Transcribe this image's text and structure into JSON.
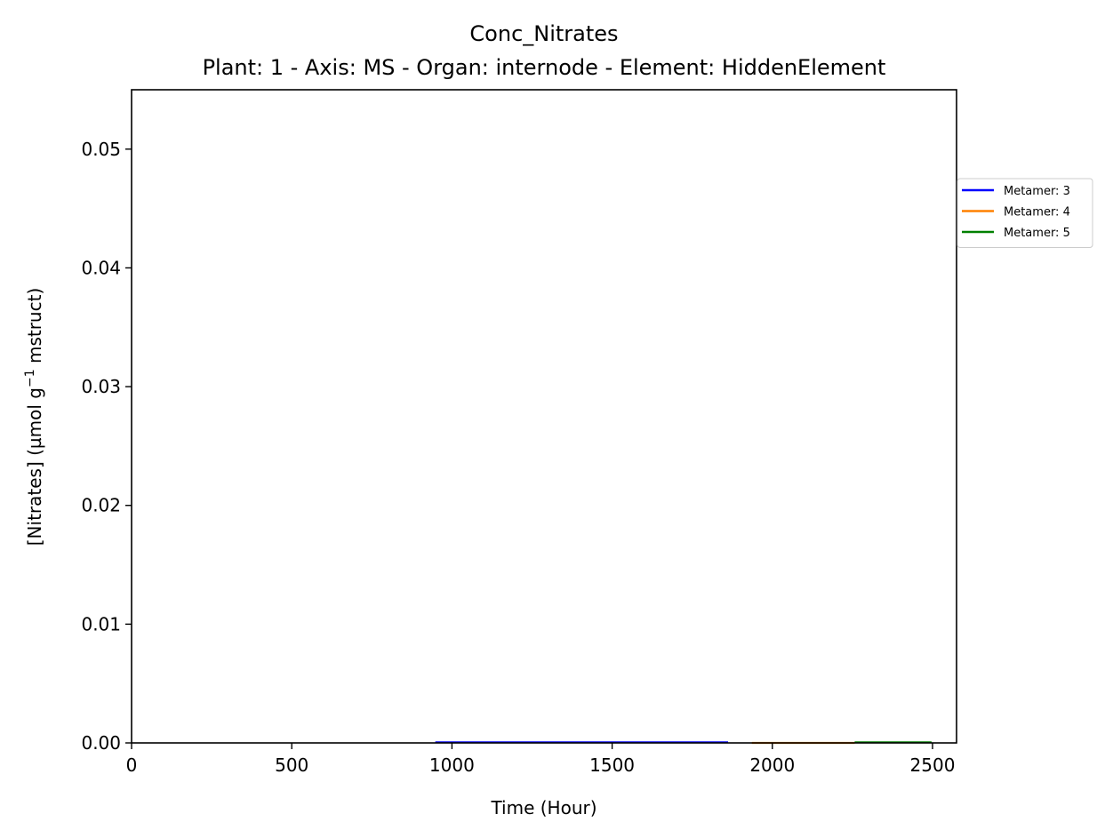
{
  "chart_data": {
    "type": "line",
    "title": "Conc_Nitrates",
    "subtitle": "Plant: 1 - Axis: MS - Organ: internode - Element: HiddenElement",
    "xlabel": "Time (Hour)",
    "ylabel_main": "[Nitrates] (µmol g",
    "ylabel_sup": "−1",
    "ylabel_tail": " mstruct)",
    "xlim": [
      0,
      2575
    ],
    "ylim": [
      0,
      0.055
    ],
    "x_ticks": [
      0,
      500,
      1000,
      1500,
      2000,
      2500
    ],
    "y_ticks": [
      0.0,
      0.01,
      0.02,
      0.03,
      0.04,
      0.05
    ],
    "x_tick_labels": [
      "0",
      "500",
      "1000",
      "1500",
      "2000",
      "2500"
    ],
    "y_tick_labels": [
      "0.00",
      "0.01",
      "0.02",
      "0.03",
      "0.04",
      "0.05"
    ],
    "legend_position": "outside-right-upper",
    "grid": false,
    "series": [
      {
        "name": "Metamer: 3",
        "color": "#0000ff",
        "x": [
          948,
          1862
        ],
        "y": [
          5e-05,
          5e-05
        ]
      },
      {
        "name": "Metamer: 4",
        "color": "#ff8000",
        "x": [
          1936,
          2257
        ],
        "y": [
          0.0,
          0.0
        ]
      },
      {
        "name": "Metamer: 5",
        "color": "#008000",
        "x": [
          2257,
          2497
        ],
        "y": [
          5e-05,
          5e-05
        ]
      }
    ]
  }
}
